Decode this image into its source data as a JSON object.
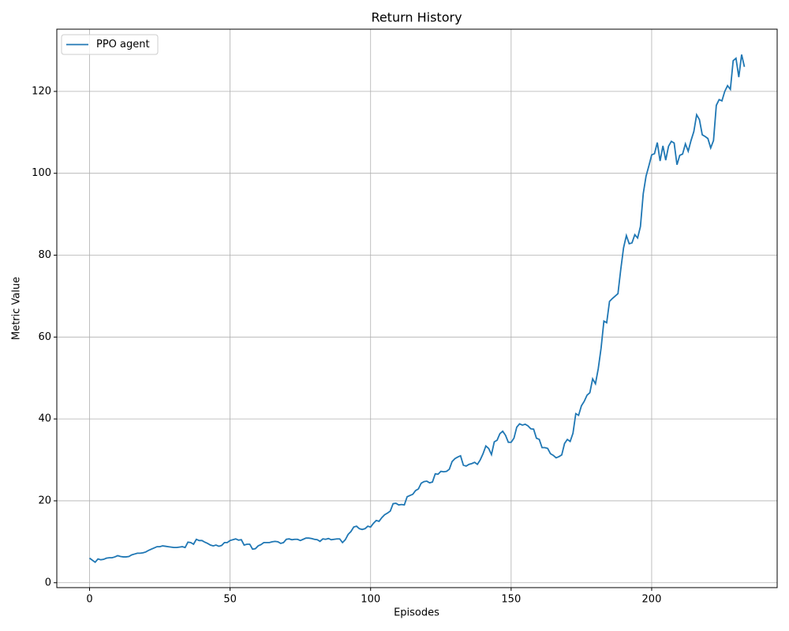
{
  "chart_data": {
    "type": "line",
    "title": "Return History",
    "xlabel": "Episodes",
    "ylabel": "Metric Value",
    "x": [
      0,
      1,
      2,
      3,
      4,
      5,
      6,
      7,
      8,
      9,
      10,
      11,
      12,
      13,
      14,
      15,
      16,
      17,
      18,
      19,
      20,
      21,
      22,
      23,
      24,
      25,
      26,
      27,
      28,
      29,
      30,
      31,
      32,
      33,
      34,
      35,
      36,
      37,
      38,
      39,
      40,
      41,
      42,
      43,
      44,
      45,
      46,
      47,
      48,
      49,
      50,
      51,
      52,
      53,
      54,
      55,
      56,
      57,
      58,
      59,
      60,
      61,
      62,
      63,
      64,
      65,
      66,
      67,
      68,
      69,
      70,
      71,
      72,
      73,
      74,
      75,
      76,
      77,
      78,
      79,
      80,
      81,
      82,
      83,
      84,
      85,
      86,
      87,
      88,
      89,
      90,
      91,
      92,
      93,
      94,
      95,
      96,
      97,
      98,
      99,
      100,
      101,
      102,
      103,
      104,
      105,
      106,
      107,
      108,
      109,
      110,
      111,
      112,
      113,
      114,
      115,
      116,
      117,
      118,
      119,
      120,
      121,
      122,
      123,
      124,
      125,
      126,
      127,
      128,
      129,
      130,
      131,
      132,
      133,
      134,
      135,
      136,
      137,
      138,
      139,
      140,
      141,
      142,
      143,
      144,
      145,
      146,
      147,
      148,
      149,
      150,
      151,
      152,
      153,
      154,
      155,
      156,
      157,
      158,
      159,
      160,
      161,
      162,
      163,
      164,
      165,
      166,
      167,
      168,
      169,
      170,
      171,
      172,
      173,
      174,
      175,
      176,
      177,
      178,
      179,
      180,
      181,
      182,
      183,
      184,
      185,
      186,
      187,
      188,
      189,
      190,
      191,
      192,
      193,
      194,
      195,
      196,
      197,
      198,
      199,
      200,
      201,
      202,
      203,
      204,
      205,
      206,
      207,
      208,
      209,
      210,
      211,
      212,
      213,
      214,
      215,
      216,
      217,
      218,
      219,
      220,
      221,
      222,
      223,
      224,
      225,
      226,
      227,
      228,
      229,
      230,
      231,
      232,
      233
    ],
    "series": [
      {
        "name": "PPO agent",
        "color": "#1f77b4",
        "values": [
          6.0,
          5.5,
          5.0,
          5.8,
          5.6,
          5.7,
          6.0,
          6.1,
          6.1,
          6.3,
          6.6,
          6.4,
          6.3,
          6.3,
          6.4,
          6.8,
          7.0,
          7.2,
          7.2,
          7.3,
          7.5,
          7.9,
          8.2,
          8.5,
          8.8,
          8.8,
          9.0,
          8.9,
          8.8,
          8.7,
          8.6,
          8.6,
          8.7,
          8.8,
          8.6,
          9.9,
          9.8,
          9.4,
          10.6,
          10.3,
          10.3,
          9.9,
          9.6,
          9.2,
          9.0,
          9.2,
          8.9,
          9.1,
          9.8,
          9.8,
          10.3,
          10.5,
          10.7,
          10.4,
          10.5,
          9.2,
          9.4,
          9.4,
          8.2,
          8.3,
          9.0,
          9.3,
          9.8,
          9.8,
          9.8,
          10.0,
          10.1,
          10.0,
          9.6,
          9.8,
          10.6,
          10.7,
          10.5,
          10.6,
          10.6,
          10.3,
          10.6,
          10.9,
          10.9,
          10.8,
          10.6,
          10.5,
          10.1,
          10.7,
          10.6,
          10.8,
          10.5,
          10.6,
          10.7,
          10.7,
          9.8,
          10.5,
          11.8,
          12.5,
          13.6,
          13.8,
          13.2,
          13.0,
          13.2,
          13.8,
          13.6,
          14.5,
          15.2,
          15.0,
          15.9,
          16.6,
          17.0,
          17.5,
          19.3,
          19.4,
          19.0,
          19.1,
          19.0,
          21.0,
          21.3,
          21.6,
          22.5,
          22.9,
          24.3,
          24.7,
          24.8,
          24.4,
          24.6,
          26.6,
          26.5,
          27.2,
          27.1,
          27.2,
          27.7,
          29.6,
          30.3,
          30.7,
          31.0,
          28.7,
          28.5,
          28.9,
          29.1,
          29.4,
          28.9,
          30.0,
          31.5,
          33.4,
          32.8,
          31.3,
          34.4,
          34.8,
          36.4,
          37.0,
          36.0,
          34.3,
          34.3,
          35.3,
          38.0,
          38.8,
          38.5,
          38.7,
          38.3,
          37.6,
          37.5,
          35.3,
          35.0,
          33.0,
          33.0,
          32.8,
          31.5,
          31.1,
          30.5,
          30.8,
          31.2,
          34.0,
          35.0,
          34.5,
          36.5,
          41.3,
          40.9,
          43.2,
          44.3,
          45.8,
          46.4,
          49.8,
          48.6,
          52.3,
          57.3,
          63.9,
          63.5,
          68.7,
          69.4,
          70.0,
          70.6,
          76.5,
          81.8,
          84.8,
          82.8,
          83.0,
          85.0,
          84.2,
          87.0,
          95.0,
          99.3,
          101.8,
          104.5,
          104.8,
          107.5,
          103.0,
          106.7,
          103.2,
          106.6,
          107.8,
          107.4,
          102.1,
          104.4,
          104.7,
          107.2,
          105.4,
          108.0,
          110.2,
          114.3,
          113.1,
          109.4,
          109.0,
          108.5,
          106.2,
          108.0,
          116.6,
          118.0,
          117.7,
          120.0,
          121.4,
          120.5,
          127.5,
          128.1,
          123.5,
          129.0,
          126.0
        ]
      }
    ],
    "xlim": [
      -11.65,
      244.65
    ],
    "ylim": [
      -1.2,
      135.2
    ],
    "xticks": [
      0,
      50,
      100,
      150,
      200
    ],
    "yticks": [
      0,
      20,
      40,
      60,
      80,
      100,
      120
    ],
    "grid": true,
    "legend": "upper left"
  }
}
